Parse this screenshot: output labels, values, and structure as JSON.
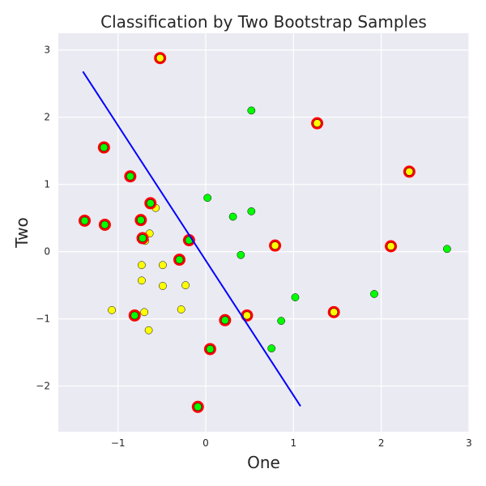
{
  "chart_data": {
    "type": "scatter",
    "title": "Classification by Two Bootstrap Samples",
    "xlabel": "One",
    "ylabel": "Two",
    "xlim": [
      -1.68,
      3.0
    ],
    "ylim": [
      -2.68,
      3.25
    ],
    "xticks": [
      -1,
      0,
      1,
      2,
      3
    ],
    "xtick_labels": [
      "−1",
      "0",
      "1",
      "2",
      "3"
    ],
    "yticks": [
      -2,
      -1,
      0,
      1,
      2,
      3
    ],
    "ytick_labels": [
      "−2",
      "−1",
      "0",
      "1",
      "2",
      "3"
    ],
    "grid": true,
    "legend": "none",
    "colors": {
      "background": "#EAEAF2",
      "grid": "#FFFFFF",
      "class_yellow": "#FFFF00",
      "class_green": "#00FF00",
      "ring": "#FF0000",
      "line": "#0000FF"
    },
    "series": [
      {
        "color": "#00FF00",
        "points": [
          [
            0.52,
            2.1
          ],
          [
            0.02,
            0.8
          ],
          [
            0.31,
            0.52
          ],
          [
            0.52,
            0.6
          ],
          [
            0.4,
            -0.05
          ],
          [
            1.02,
            -0.68
          ],
          [
            0.86,
            -1.03
          ],
          [
            0.75,
            -1.44
          ],
          [
            1.92,
            -0.63
          ],
          [
            2.75,
            0.04
          ]
        ]
      },
      {
        "color": "#FFFF00",
        "points": [
          [
            -0.57,
            0.65
          ],
          [
            -0.64,
            0.27
          ],
          [
            -0.69,
            0.16
          ],
          [
            -0.73,
            -0.2
          ],
          [
            -0.49,
            -0.2
          ],
          [
            -0.73,
            -0.43
          ],
          [
            -0.49,
            -0.51
          ],
          [
            -0.23,
            -0.5
          ],
          [
            -1.07,
            -0.87
          ],
          [
            -0.7,
            -0.9
          ],
          [
            -0.28,
            -0.86
          ],
          [
            -0.65,
            -1.17
          ]
        ]
      },
      {
        "color": "#00FF00",
        "ring": "#FF0000",
        "points": [
          [
            -1.16,
            1.55
          ],
          [
            -0.86,
            1.12
          ],
          [
            -1.38,
            0.46
          ],
          [
            -1.15,
            0.4
          ],
          [
            -0.63,
            0.72
          ],
          [
            -0.74,
            0.47
          ],
          [
            -0.72,
            0.2
          ],
          [
            -0.19,
            0.17
          ],
          [
            -0.3,
            -0.12
          ],
          [
            -0.81,
            -0.95
          ],
          [
            0.22,
            -1.02
          ],
          [
            0.05,
            -1.45
          ],
          [
            -0.09,
            -2.31
          ]
        ]
      },
      {
        "color": "#FFFF00",
        "ring": "#FF0000",
        "points": [
          [
            -0.52,
            2.88
          ],
          [
            1.27,
            1.91
          ],
          [
            2.32,
            1.19
          ],
          [
            0.79,
            0.09
          ],
          [
            2.11,
            0.08
          ],
          [
            1.46,
            -0.9
          ],
          [
            0.47,
            -0.95
          ]
        ]
      }
    ],
    "boundary_line": {
      "color": "#0000FF",
      "points": [
        [
          -1.4,
          2.68
        ],
        [
          1.08,
          -2.3
        ]
      ]
    }
  }
}
